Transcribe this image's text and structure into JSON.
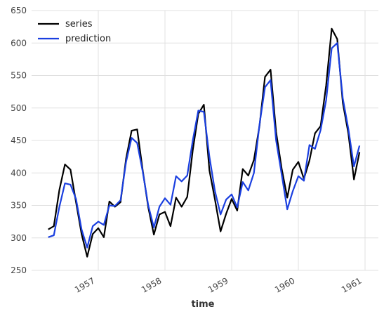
{
  "chart_data": {
    "type": "line",
    "title": "",
    "xlabel": "time",
    "ylabel": "",
    "ylim": [
      250,
      650
    ],
    "xlim": [
      1956.0,
      1961.2
    ],
    "yticks": [
      250,
      300,
      350,
      400,
      450,
      500,
      550,
      600,
      650
    ],
    "xticks": [
      {
        "value": 1957,
        "label": "1957"
      },
      {
        "value": 1958,
        "label": "1958"
      },
      {
        "value": 1959,
        "label": "1959"
      },
      {
        "value": 1960,
        "label": "1960"
      },
      {
        "value": 1961,
        "label": "1961"
      }
    ],
    "grid": true,
    "legend": "top-left",
    "x_start": 1956.25,
    "x_step_months": 1,
    "series": [
      {
        "name": "series",
        "color": "#000000",
        "values": [
          313,
          318,
          374,
          413,
          405,
          355,
          306,
          271,
          306,
          315,
          301,
          356,
          348,
          355,
          422,
          465,
          467,
          404,
          347,
          305,
          336,
          340,
          318,
          362,
          348,
          363,
          435,
          491,
          505,
          404,
          359,
          310,
          337,
          360,
          342,
          406,
          396,
          420,
          472,
          548,
          559,
          463,
          407,
          362,
          405,
          417,
          391,
          419,
          461,
          472,
          535,
          622,
          606,
          508,
          461,
          390,
          432
        ]
      },
      {
        "name": "prediction",
        "color": "#1a3fe0",
        "values": [
          301,
          304,
          348,
          384,
          382,
          360,
          313,
          285,
          318,
          325,
          320,
          350,
          349,
          358,
          417,
          454,
          446,
          402,
          350,
          316,
          348,
          361,
          351,
          395,
          387,
          396,
          450,
          496,
          494,
          425,
          372,
          336,
          359,
          367,
          347,
          386,
          373,
          400,
          474,
          532,
          543,
          450,
          398,
          344,
          372,
          395,
          388,
          443,
          437,
          466,
          512,
          592,
          600,
          515,
          468,
          410,
          442
        ]
      }
    ]
  }
}
